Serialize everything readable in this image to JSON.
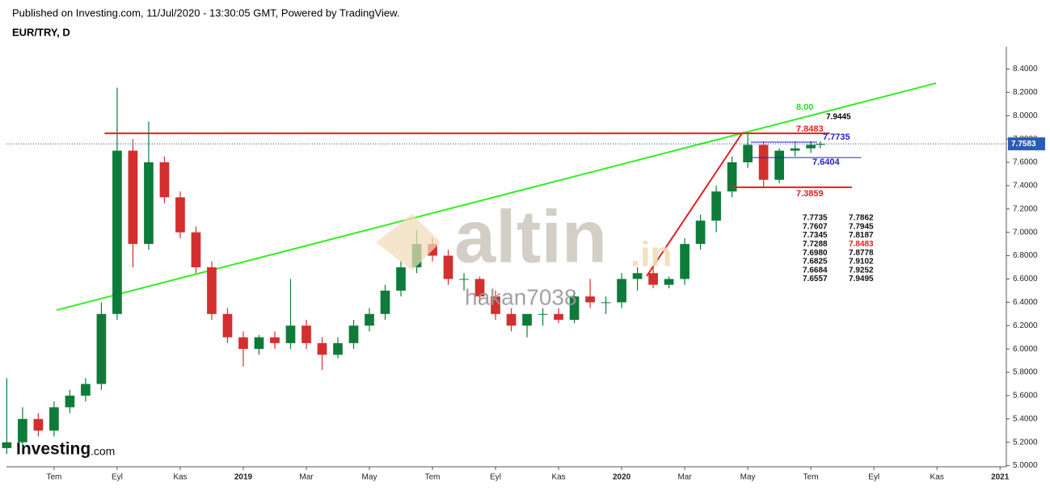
{
  "header": {
    "published": "Published on Investing.com, 11/Jul/2020 - 13:30:05 GMT, Powered by TradingView.",
    "symbol": "EUR/TRY, D"
  },
  "watermark": {
    "brand": "altin",
    "suffix": ".in",
    "user": "hakan7038"
  },
  "logo": {
    "main": "Investing",
    "suffix": ".com"
  },
  "chart_data": {
    "type": "candlestick",
    "x": [
      4.5,
      5,
      5.5,
      6,
      6.5,
      7,
      7.5,
      8,
      8.5,
      9,
      9.5,
      10,
      10.5,
      11,
      11.5,
      12,
      12.5,
      13,
      13.5,
      14,
      14.5,
      15,
      15.5,
      16,
      16.5,
      17,
      17.5,
      18,
      18.5,
      19,
      19.5,
      20,
      20.5,
      21,
      21.5,
      22,
      22.5,
      23,
      23.5,
      24,
      24.5,
      25,
      25.5,
      26,
      26.5,
      27,
      27.5,
      28,
      28.5,
      29,
      29.5,
      30,
      30.3
    ],
    "open": [
      5.15,
      5.2,
      5.4,
      5.3,
      5.5,
      5.6,
      5.7,
      6.3,
      7.7,
      6.9,
      7.6,
      7.3,
      7.0,
      6.7,
      6.3,
      6.1,
      6.0,
      6.1,
      6.05,
      6.2,
      6.05,
      5.95,
      6.05,
      6.2,
      6.3,
      6.5,
      6.7,
      6.9,
      6.8,
      6.6,
      6.6,
      6.45,
      6.3,
      6.2,
      6.3,
      6.3,
      6.25,
      6.45,
      6.4,
      6.4,
      6.6,
      6.65,
      6.55,
      6.6,
      6.9,
      7.1,
      7.35,
      7.6,
      7.75,
      7.45,
      7.7,
      7.72,
      7.75
    ],
    "high": [
      5.75,
      5.5,
      5.45,
      5.55,
      5.65,
      5.75,
      6.4,
      8.24,
      7.8,
      7.95,
      7.65,
      7.35,
      7.05,
      6.75,
      6.35,
      6.15,
      6.12,
      6.15,
      6.6,
      6.25,
      6.1,
      6.1,
      6.25,
      6.35,
      6.55,
      6.75,
      7.02,
      6.95,
      6.85,
      6.65,
      6.62,
      6.5,
      6.35,
      6.3,
      6.35,
      6.35,
      6.5,
      6.6,
      6.45,
      6.65,
      6.7,
      6.7,
      6.62,
      6.95,
      7.15,
      7.4,
      7.65,
      7.85,
      7.78,
      7.72,
      7.78,
      7.78,
      7.78
    ],
    "low": [
      5.1,
      5.15,
      5.25,
      5.25,
      5.45,
      5.55,
      5.65,
      6.25,
      6.7,
      6.85,
      7.25,
      6.95,
      6.65,
      6.25,
      6.05,
      5.85,
      5.95,
      6.0,
      6.0,
      6.0,
      5.82,
      5.92,
      6.0,
      6.15,
      6.25,
      6.45,
      6.65,
      6.75,
      6.55,
      6.5,
      6.4,
      6.25,
      6.15,
      6.1,
      6.2,
      6.22,
      6.22,
      6.35,
      6.3,
      6.35,
      6.5,
      6.52,
      6.52,
      6.55,
      6.85,
      7.0,
      7.3,
      7.55,
      7.38,
      7.42,
      7.65,
      7.68,
      7.72
    ],
    "close": [
      5.2,
      5.4,
      5.3,
      5.5,
      5.6,
      5.7,
      6.3,
      7.7,
      6.9,
      7.6,
      7.3,
      7.0,
      6.7,
      6.3,
      6.1,
      6.0,
      6.1,
      6.05,
      6.2,
      6.05,
      5.95,
      6.05,
      6.2,
      6.3,
      6.5,
      6.7,
      6.9,
      6.8,
      6.6,
      6.6,
      6.45,
      6.3,
      6.2,
      6.3,
      6.3,
      6.25,
      6.45,
      6.4,
      6.4,
      6.6,
      6.65,
      6.55,
      6.6,
      6.9,
      7.1,
      7.35,
      7.6,
      7.75,
      7.45,
      7.7,
      7.72,
      7.75,
      7.7583
    ],
    "up_color": "#0f7b3a",
    "down_color": "#d32f2f",
    "xlim": [
      4.49,
      36.2
    ],
    "ylim": [
      4.99,
      8.59
    ],
    "xticks": [
      {
        "value": 6,
        "label": "Tem"
      },
      {
        "value": 8,
        "label": "Eyl"
      },
      {
        "value": 10,
        "label": "Kas"
      },
      {
        "value": 12,
        "label": "2019"
      },
      {
        "value": 14,
        "label": "Mar"
      },
      {
        "value": 16,
        "label": "May"
      },
      {
        "value": 18,
        "label": "Tem"
      },
      {
        "value": 20,
        "label": "Eyl"
      },
      {
        "value": 22,
        "label": "Kas"
      },
      {
        "value": 24,
        "label": "2020"
      },
      {
        "value": 26,
        "label": "Mar"
      },
      {
        "value": 28,
        "label": "May"
      },
      {
        "value": 30,
        "label": "Tem"
      },
      {
        "value": 32,
        "label": "Eyl"
      },
      {
        "value": 34,
        "label": "Kas"
      },
      {
        "value": 36,
        "label": "2021"
      }
    ],
    "yticks": [
      {
        "value": 5.0,
        "label": "5.0000"
      },
      {
        "value": 5.2,
        "label": "5.2000"
      },
      {
        "value": 5.4,
        "label": "5.4000"
      },
      {
        "value": 5.6,
        "label": "5.6000"
      },
      {
        "value": 5.8,
        "label": "5.8000"
      },
      {
        "value": 6.0,
        "label": "6.0000"
      },
      {
        "value": 6.2,
        "label": "6.2000"
      },
      {
        "value": 6.4,
        "label": "6.4000"
      },
      {
        "value": 6.6,
        "label": "6.6000"
      },
      {
        "value": 6.8,
        "label": "6.8000"
      },
      {
        "value": 7.0,
        "label": "7.0000"
      },
      {
        "value": 7.2,
        "label": "7.2000"
      },
      {
        "value": 7.4,
        "label": "7.4000"
      },
      {
        "value": 7.6,
        "label": "7.6000"
      },
      {
        "value": 7.8,
        "label": "7.8000"
      },
      {
        "value": 8.0,
        "label": "8.0000"
      },
      {
        "value": 8.2,
        "label": "8.2000"
      },
      {
        "value": 8.4,
        "label": "8.4000"
      }
    ],
    "last_price": {
      "value": 7.7583,
      "label": "7.7583"
    },
    "levels": [
      {
        "value": 7.8483,
        "color": "#e02020",
        "x": [
          7.6,
          30.6
        ]
      },
      {
        "value": 7.7735,
        "color": "#2222cc",
        "x": [
          28.1,
          30.2
        ]
      },
      {
        "value": 7.6404,
        "color": "#2222cc",
        "x": [
          28.1,
          31.6
        ]
      },
      {
        "value": 7.3859,
        "color": "#e02020",
        "x": [
          27.5,
          31.3
        ]
      }
    ],
    "annotations": [
      {
        "text": "8.00",
        "color": "#22dd22"
      },
      {
        "text": "7.9445",
        "color": "#000000"
      }
    ],
    "table": [
      [
        "7.7735",
        "7.7862"
      ],
      [
        "7.7607",
        "7.7945"
      ],
      [
        "7.7345",
        "7.8187"
      ],
      [
        "7.7288",
        "7.8483"
      ],
      [
        "7.6980",
        "7.8778"
      ],
      [
        "7.6825",
        "7.9102"
      ],
      [
        "7.6684",
        "7.9252"
      ],
      [
        "7.6557",
        "7.9495"
      ]
    ]
  }
}
